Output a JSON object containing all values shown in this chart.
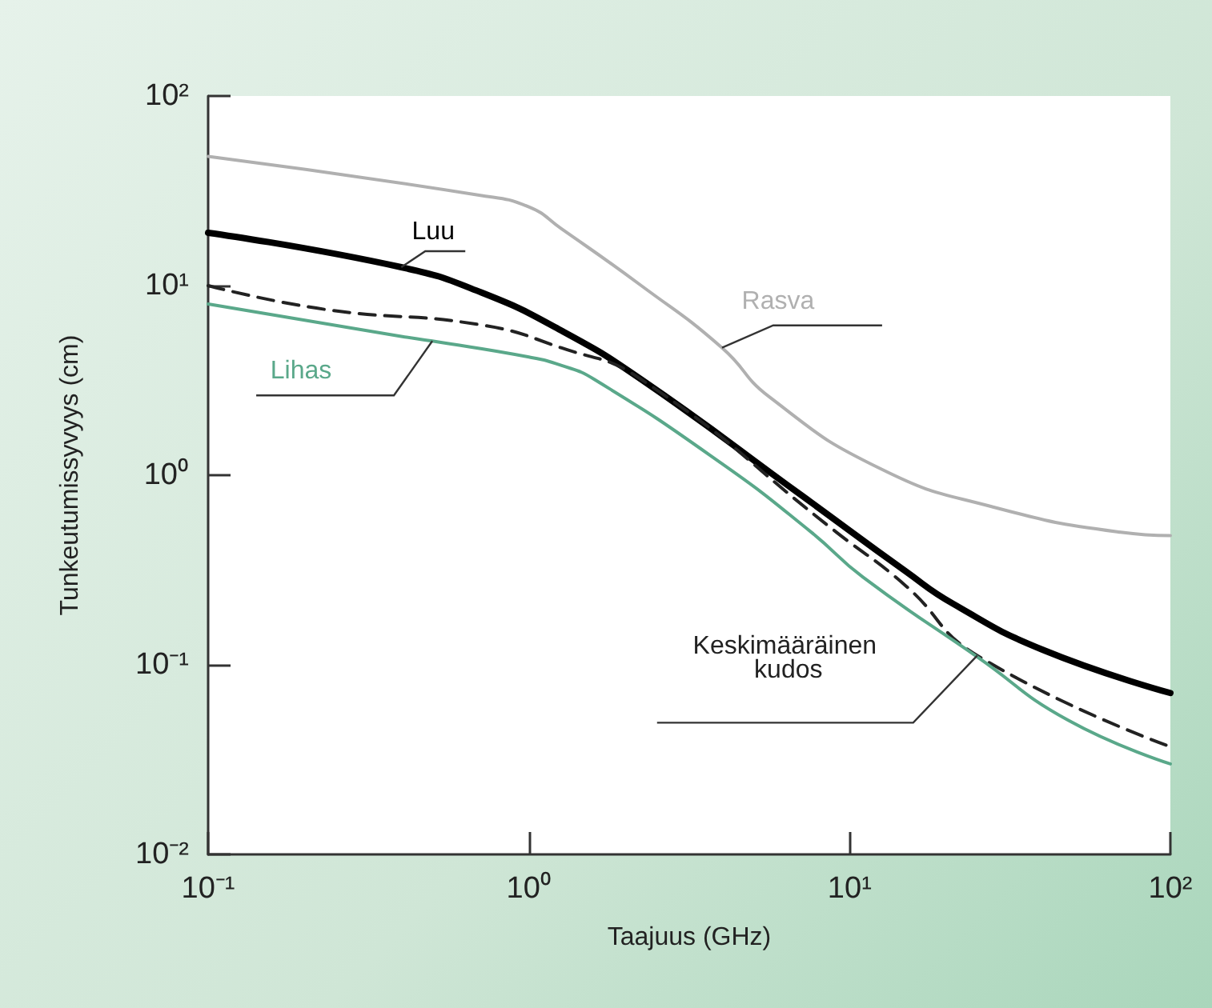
{
  "chart_data": {
    "type": "line",
    "xlabel": "Taajuus (GHz)",
    "ylabel": "Tunkeutumissyvyys (cm)",
    "log": "xy",
    "grid": false,
    "legend": false,
    "marker": "none",
    "xlim": [
      0.1,
      100
    ],
    "xticks": [
      {
        "value": 0.1,
        "label": "10⁻¹"
      },
      {
        "value": 1,
        "label": "10⁰"
      },
      {
        "value": 10,
        "label": "10¹"
      },
      {
        "value": 100,
        "label": "10²"
      }
    ],
    "ylim": [
      0.01,
      100
    ],
    "yticks": [
      {
        "value": 0.01,
        "label": "10⁻²"
      },
      {
        "value": 0.1,
        "label": "10⁻¹"
      },
      {
        "value": 1,
        "label": "10⁰"
      },
      {
        "value": 10,
        "label": "10¹"
      },
      {
        "value": 100,
        "label": "10²"
      }
    ],
    "series": [
      {
        "name": "Rasva",
        "color": "#b0b0b0",
        "line_style": "solid",
        "x": [
          0.1,
          0.7,
          1,
          1.26,
          2.24,
          4,
          5.6,
          12.5,
          28,
          70,
          100
        ],
        "values": [
          48,
          30,
          26,
          20,
          10,
          4.7,
          2.6,
          1.08,
          0.68,
          0.5,
          0.48
        ]
      },
      {
        "name": "Luu",
        "color": "#000000",
        "line_style": "solid",
        "x": [
          0.1,
          0.4,
          0.71,
          1.26,
          2.24,
          7.1,
          15,
          21,
          40,
          100
        ],
        "values": [
          19,
          12.5,
          9.2,
          5.8,
          3.2,
          0.78,
          0.31,
          0.21,
          0.12,
          0.071
        ]
      },
      {
        "name": "Keskimääräinen kudos",
        "color": "#222222",
        "line_style": "dashed",
        "x": [
          0.1,
          0.23,
          0.71,
          1.26,
          2.24,
          9.1,
          15,
          25,
          100
        ],
        "values": [
          10,
          7.5,
          6.2,
          4.7,
          3.2,
          0.5,
          0.26,
          0.112,
          0.037
        ]
      },
      {
        "name": "Lihas",
        "color": "#5aa88a",
        "line_style": "solid",
        "x": [
          0.1,
          0.4,
          0.5,
          1,
          1.26,
          1.6,
          4,
          7.6,
          11,
          25,
          48,
          100
        ],
        "values": [
          8,
          5.4,
          5.1,
          4.2,
          3.8,
          3.2,
          1.15,
          0.5,
          0.29,
          0.11,
          0.051,
          0.03
        ]
      }
    ]
  }
}
